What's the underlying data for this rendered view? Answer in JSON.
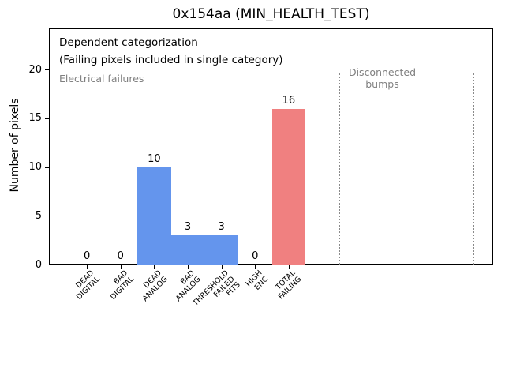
{
  "chart_data": {
    "type": "bar",
    "title": "0x154aa (MIN_HEALTH_TEST)",
    "xlabel": "",
    "ylabel": "Number of pixels",
    "categories": [
      "DEAD\nDIGITAL",
      "BAD\nDIGITAL",
      "DEAD\nANALOG",
      "BAD\nANALOG",
      "THRESHOLD\nFAILED\nFITS",
      "HIGH\nENC",
      "TOTAL\nFAILING"
    ],
    "values": [
      0,
      0,
      10,
      3,
      3,
      0,
      16
    ],
    "value_labels": [
      "0",
      "0",
      "10",
      "3",
      "3",
      "0",
      "16"
    ],
    "bar_colors": [
      "#6495ED",
      "#6495ED",
      "#6495ED",
      "#6495ED",
      "#6495ED",
      "#6495ED",
      "#F08080"
    ],
    "bar_width": 1.0,
    "yticks": [
      0,
      5,
      10,
      15,
      20
    ],
    "ylim": [
      0,
      24.23
    ],
    "xlim": [
      -1.13,
      12.08
    ],
    "grid": false,
    "legend": null,
    "separators_x": [
      7.5,
      11.5
    ],
    "annotations": [
      {
        "id": "dependent-categorization",
        "text": "Dependent categorization",
        "color": "#000000"
      },
      {
        "id": "failing-pixels-note",
        "text": "(Failing pixels included in single category)",
        "color": "#000000"
      },
      {
        "id": "electrical-failures-label",
        "text": "Electrical failures",
        "color": "#808080"
      },
      {
        "id": "disconnected-bumps-label",
        "text": "Disconnected\nbumps",
        "color": "#808080"
      }
    ],
    "colors": {
      "bar_blue": "#6495ED",
      "bar_red": "#F08080",
      "annotation_gray": "#808080",
      "separator_gray": "#8a8a8a"
    }
  }
}
